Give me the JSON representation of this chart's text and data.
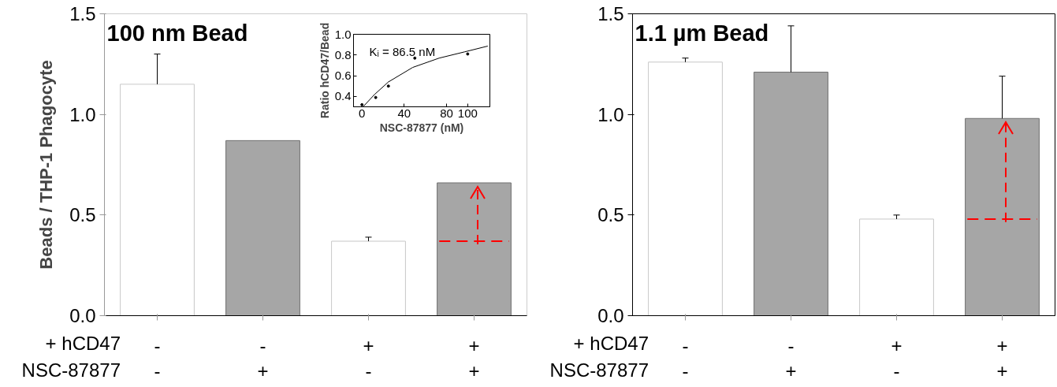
{
  "chart_data": [
    {
      "type": "bar",
      "title": "100 nm Bead",
      "ylabel": "Beads / THP-1 Phagocyte",
      "categories": [
        "-\n-",
        "-\n+",
        "+\n-",
        "+\n+"
      ],
      "values": [
        1.15,
        0.87,
        0.37,
        0.66
      ],
      "colors": [
        "#ffffff",
        "#a6a6a6",
        "#ffffff",
        "#a6a6a6"
      ],
      "errors": [
        [
          1.15,
          1.3
        ],
        null,
        [
          0.37,
          0.39
        ],
        null
      ],
      "ylim": [
        0,
        1.5
      ],
      "yticks": [
        {
          "value": 0,
          "label": "0.0"
        },
        {
          "value": 0.5,
          "label": "0.5"
        },
        {
          "value": 1,
          "label": "1.0"
        },
        {
          "value": 1.5,
          "label": "1.5"
        }
      ],
      "ref_lines": [
        {
          "axis": "y",
          "value": 0.37,
          "color": "#ff0000",
          "line_style": "dashed"
        }
      ],
      "annotations": [
        "+ hCD47",
        "NSC-87877"
      ],
      "grid": false
    },
    {
      "type": "scatter",
      "xlabel": "NSC-87877 (nM)",
      "ylabel": "Ratio hCD47/Bead",
      "series": [
        {
          "type": "scatter",
          "color": "#000000",
          "marker": "circle",
          "x": [
            0,
            13,
            25,
            50,
            100
          ],
          "values": [
            0.32,
            0.39,
            0.5,
            0.77,
            0.81
          ]
        },
        {
          "type": "line",
          "color": "#000000",
          "x": [
            1,
            12,
            25,
            48,
            73,
            97,
            119
          ],
          "values": [
            0.3,
            0.42,
            0.54,
            0.68,
            0.77,
            0.83,
            0.886
          ]
        }
      ],
      "xlim": [
        -8,
        121
      ],
      "xticks": [
        0,
        40,
        80,
        100
      ],
      "ylim": [
        0.3,
        1.0
      ],
      "yticks": [
        0.4,
        0.6,
        0.8,
        {
          "value": 1,
          "label": "1.0"
        }
      ],
      "annotations": [
        "Kᵢ = 86.5 nM"
      ],
      "grid": false
    },
    {
      "type": "bar",
      "title": "1.1 µm Bead",
      "categories": [
        "-\n-",
        "-\n+",
        "+\n-",
        "+\n+"
      ],
      "values": [
        1.26,
        1.21,
        0.48,
        0.98
      ],
      "colors": [
        "#ffffff",
        "#a6a6a6",
        "#ffffff",
        "#a6a6a6"
      ],
      "errors": [
        [
          1.26,
          1.28
        ],
        [
          1.21,
          1.44
        ],
        [
          0.48,
          0.5
        ],
        [
          0.98,
          1.19
        ]
      ],
      "ylim": [
        0,
        1.5
      ],
      "yticks": [
        {
          "value": 0,
          "label": "0.0"
        },
        {
          "value": 0.5,
          "label": "0.5"
        },
        {
          "value": 1,
          "label": "1.0"
        },
        {
          "value": 1.5,
          "label": "1.5"
        }
      ],
      "ref_lines": [
        {
          "axis": "y",
          "value": 0.48,
          "color": "#ff0000",
          "line_style": "dashed"
        }
      ],
      "annotations": [
        "+ hCD47",
        "NSC-87877"
      ],
      "grid": false
    }
  ]
}
